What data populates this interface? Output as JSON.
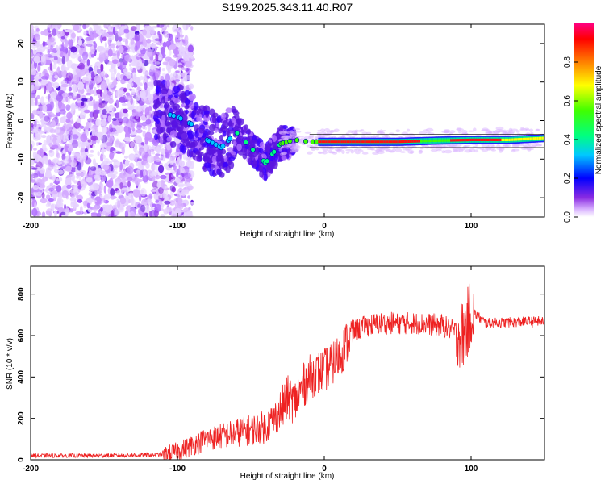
{
  "title": "S199.2025.343.11.40.R07",
  "chart_data": [
    {
      "type": "heatmap",
      "name": "spectrogram",
      "xlabel": "Height of straight line (km)",
      "ylabel": "Frequency (Hz)",
      "xlim": [
        -200,
        150
      ],
      "ylim": [
        -25,
        25
      ],
      "xticks": [
        -200,
        -100,
        0,
        100
      ],
      "yticks": [
        -20,
        -10,
        0,
        10,
        20
      ],
      "ridge": {
        "x": [
          -110,
          -100,
          -90,
          -80,
          -70,
          -60,
          -50,
          -40,
          -30,
          -20,
          -10,
          0,
          25,
          50,
          75,
          100,
          125,
          150
        ],
        "frequency_hz": [
          2,
          1,
          -1,
          -5,
          -7,
          -3,
          -7,
          -11,
          -6,
          -5,
          -5.5,
          -5.5,
          -5.5,
          -5.5,
          -5.2,
          -5,
          -5,
          -4.5
        ]
      },
      "colorbar": {
        "label": "Normalized spectral amplitude",
        "range": [
          0,
          1
        ],
        "ticks": [
          0.0,
          0.2,
          0.4,
          0.6,
          0.8
        ],
        "tick_labels": [
          "0.0",
          "0.2",
          "0.4",
          "0.6",
          "0.8"
        ]
      }
    },
    {
      "type": "line",
      "name": "snr",
      "xlabel": "Height of straight line (km)",
      "ylabel": "SNR (10 * v/v)",
      "xlim": [
        -200,
        150
      ],
      "ylim": [
        0,
        935
      ],
      "xticks": [
        -200,
        -100,
        0,
        100
      ],
      "yticks": [
        0,
        200,
        400,
        600,
        800
      ],
      "color": "#ee2222",
      "trend": {
        "x": [
          -200,
          -150,
          -110,
          -100,
          -80,
          -60,
          -40,
          -30,
          -25,
          -20,
          -15,
          -10,
          0,
          10,
          20,
          30,
          40,
          60,
          80,
          95,
          100,
          110,
          150
        ],
        "y": [
          20,
          20,
          25,
          40,
          100,
          130,
          160,
          230,
          300,
          280,
          350,
          400,
          430,
          500,
          620,
          650,
          660,
          660,
          650,
          600,
          720,
          660,
          670
        ]
      }
    }
  ]
}
